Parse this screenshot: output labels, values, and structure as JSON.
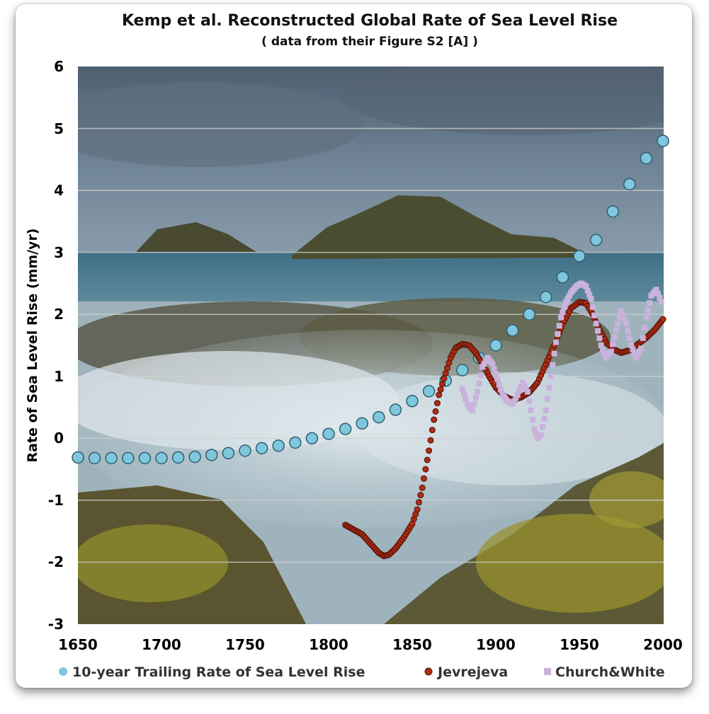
{
  "chart_data": {
    "type": "scatter",
    "title": "Kemp et al. Reconstructed Global Rate of Sea Level Rise",
    "subtitle": "( data from their Figure S2 [A] )",
    "xlabel": "",
    "ylabel": "Rate of Sea Level Rise (mm/yr)",
    "xlim": [
      1650,
      2000
    ],
    "ylim": [
      -3,
      6
    ],
    "xticks": [
      "1650",
      "1700",
      "1750",
      "1800",
      "1850",
      "1900",
      "1950",
      "2000"
    ],
    "yticks": [
      "-3",
      "-2",
      "-1",
      "0",
      "1",
      "2",
      "3",
      "4",
      "5",
      "6"
    ],
    "grid": "horizontal",
    "legend_position": "bottom",
    "background": "photo of ocean waves breaking over rocks",
    "series": [
      {
        "name": "10-year Trailing Rate of Sea Level Rise",
        "color": "#7fc7de",
        "marker": "circle",
        "x": [
          1650,
          1660,
          1670,
          1680,
          1690,
          1700,
          1710,
          1720,
          1730,
          1740,
          1750,
          1760,
          1770,
          1780,
          1790,
          1800,
          1810,
          1820,
          1830,
          1840,
          1850,
          1860,
          1870,
          1880,
          1890,
          1900,
          1910,
          1920,
          1930,
          1940,
          1950,
          1960,
          1970,
          1980,
          1990,
          2000
        ],
        "y": [
          -0.31,
          -0.32,
          -0.32,
          -0.32,
          -0.32,
          -0.32,
          -0.31,
          -0.3,
          -0.27,
          -0.24,
          -0.2,
          -0.16,
          -0.12,
          -0.07,
          0.0,
          0.07,
          0.15,
          0.24,
          0.34,
          0.46,
          0.6,
          0.76,
          0.93,
          1.1,
          1.3,
          1.5,
          1.74,
          2.0,
          2.28,
          2.6,
          2.94,
          3.2,
          3.66,
          4.1,
          4.52,
          4.8
        ]
      },
      {
        "name": "Jevrejeva",
        "color": "#b02c14",
        "marker": "circle",
        "x": [
          1810,
          1820,
          1825,
          1830,
          1833,
          1836,
          1840,
          1845,
          1850,
          1853,
          1856,
          1860,
          1863,
          1866,
          1870,
          1873,
          1876,
          1880,
          1884,
          1888,
          1892,
          1896,
          1900,
          1905,
          1910,
          1915,
          1920,
          1925,
          1930,
          1935,
          1940,
          1945,
          1950,
          1954,
          1958,
          1962,
          1966,
          1970,
          1975,
          1980,
          1985,
          1990,
          1995,
          2000
        ],
        "y": [
          -1.4,
          -1.55,
          -1.7,
          -1.85,
          -1.9,
          -1.88,
          -1.78,
          -1.6,
          -1.38,
          -1.15,
          -0.8,
          -0.2,
          0.3,
          0.7,
          1.05,
          1.3,
          1.46,
          1.52,
          1.5,
          1.38,
          1.2,
          1.0,
          0.82,
          0.68,
          0.62,
          0.66,
          0.74,
          0.9,
          1.2,
          1.5,
          1.85,
          2.1,
          2.2,
          2.18,
          2.0,
          1.75,
          1.55,
          1.44,
          1.38,
          1.42,
          1.52,
          1.62,
          1.75,
          1.92
        ]
      },
      {
        "name": "Church&White",
        "color": "#c9b3dc",
        "marker": "square",
        "x": [
          1880,
          1883,
          1886,
          1889,
          1892,
          1895,
          1898,
          1901,
          1904,
          1907,
          1910,
          1913,
          1916,
          1919,
          1921,
          1923,
          1925,
          1927,
          1930,
          1933,
          1936,
          1939,
          1942,
          1945,
          1948,
          1951,
          1954,
          1957,
          1960,
          1963,
          1966,
          1969,
          1972,
          1975,
          1978,
          1981,
          1984,
          1987,
          1990,
          1993,
          1996,
          1999
        ],
        "y": [
          0.8,
          0.55,
          0.45,
          0.75,
          1.15,
          1.3,
          1.2,
          0.95,
          0.7,
          0.6,
          0.55,
          0.7,
          0.9,
          0.75,
          0.45,
          0.15,
          0.0,
          0.05,
          0.45,
          1.0,
          1.55,
          1.95,
          2.2,
          2.35,
          2.45,
          2.5,
          2.45,
          2.25,
          1.85,
          1.5,
          1.3,
          1.4,
          1.75,
          2.05,
          1.85,
          1.5,
          1.3,
          1.45,
          1.95,
          2.3,
          2.4,
          2.2
        ]
      }
    ]
  }
}
